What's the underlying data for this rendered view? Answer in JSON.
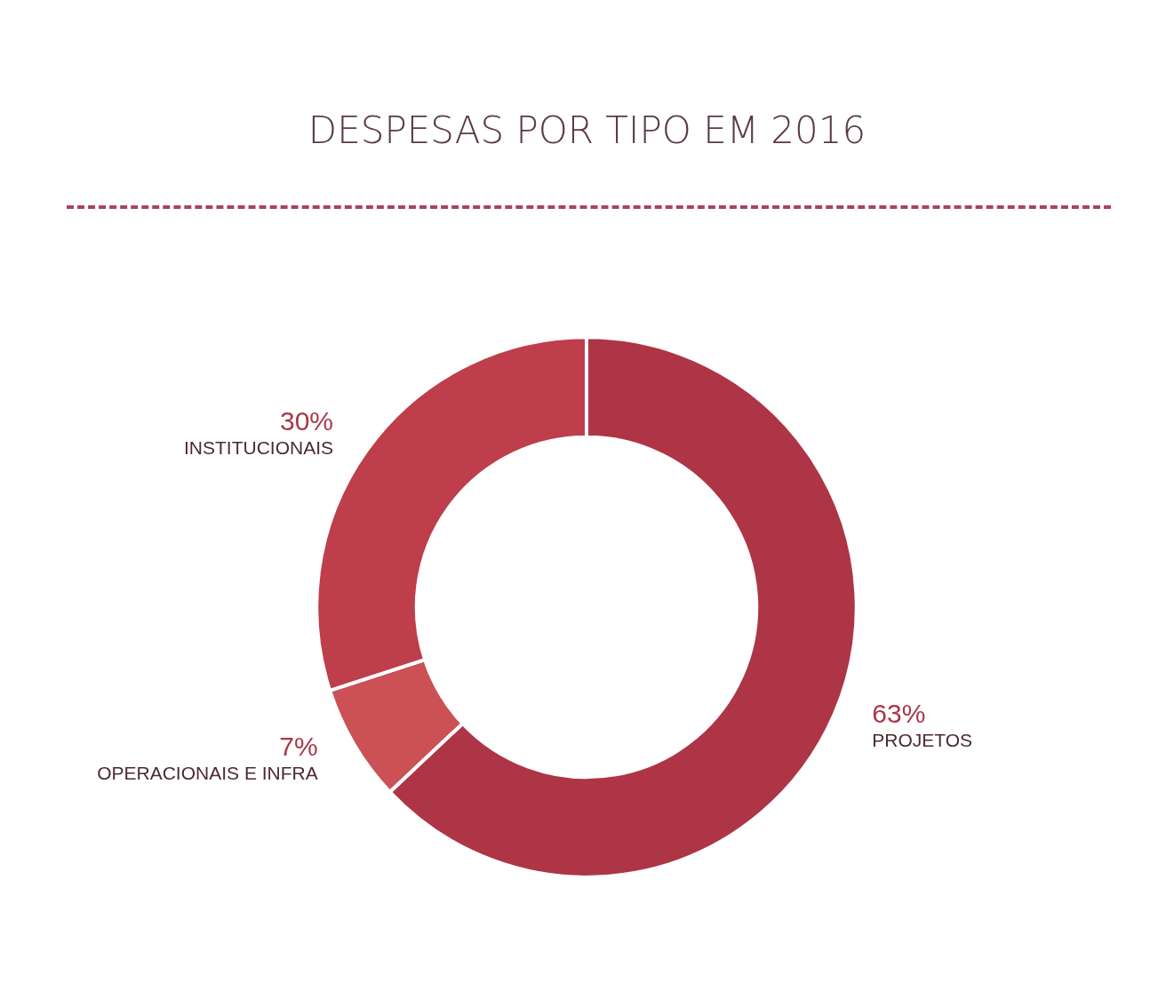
{
  "chart_data": {
    "type": "donut",
    "title": "DESPESAS POR TIPO EM 2016",
    "categories": [
      "PROJETOS",
      "OPERACIONAIS E INFRA",
      "INSTITUCIONAIS"
    ],
    "values": [
      63,
      7,
      30
    ],
    "value_labels": [
      "63%",
      "7%",
      "30%"
    ],
    "colors": [
      "#ae3546",
      "#cb5154",
      "#be3e4b"
    ],
    "legend": false
  }
}
